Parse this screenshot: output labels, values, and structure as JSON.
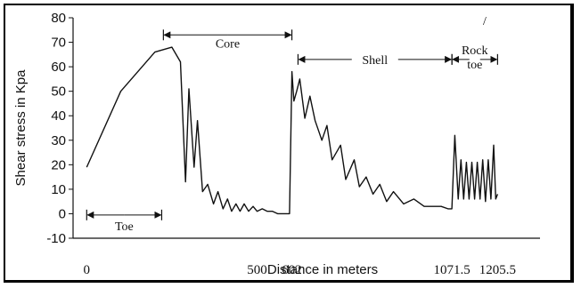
{
  "chart_data": {
    "type": "line",
    "title": "",
    "xlabel": "Distance in meters",
    "ylabel": "Shear stress in Kpa",
    "xlim": [
      -40,
      1330
    ],
    "ylim": [
      -10,
      80
    ],
    "y_ticks": [
      -10,
      0,
      10,
      20,
      30,
      40,
      50,
      60,
      70,
      80
    ],
    "x_ticks": [
      {
        "value": 0,
        "label": "0"
      },
      {
        "value": 500,
        "label": "500"
      },
      {
        "value": 602,
        "label": "602"
      },
      {
        "value": 1071.5,
        "label": "1071.5"
      },
      {
        "value": 1205.5,
        "label": "1205.5"
      }
    ],
    "grid": false,
    "legend": "none",
    "series": [
      {
        "x": [
          0,
          100,
          200,
          250,
          275,
          290,
          300,
          315,
          325,
          340,
          355,
          372,
          385,
          400,
          413,
          425,
          438,
          450,
          462,
          475,
          488,
          500,
          515,
          530,
          545,
          560,
          580,
          595,
          602,
          608,
          616,
          625,
          640,
          655,
          670,
          690,
          705,
          720,
          745,
          760,
          785,
          800,
          820,
          840,
          860,
          880,
          900,
          930,
          960,
          990,
          1020,
          1040,
          1060,
          1071.5,
          1080,
          1090,
          1098,
          1106,
          1114,
          1122,
          1130,
          1138,
          1146,
          1154,
          1162,
          1170,
          1178,
          1186,
          1194,
          1200,
          1205.5
        ],
        "y": [
          19,
          50,
          66,
          68,
          62,
          13,
          51,
          19,
          38,
          9,
          12,
          4,
          9,
          2,
          6,
          1,
          4,
          1,
          4,
          1,
          3,
          1,
          2,
          1,
          1,
          0,
          0,
          0,
          58,
          46,
          50,
          55,
          39,
          48,
          38,
          30,
          36,
          22,
          28,
          14,
          22,
          11,
          15,
          8,
          12,
          5,
          9,
          4,
          6,
          3,
          3,
          3,
          2,
          2,
          32,
          6,
          22,
          6,
          21,
          6,
          21,
          6,
          21,
          6,
          22,
          5,
          22,
          6,
          28,
          6,
          8
        ]
      }
    ],
    "zones": [
      {
        "label": "Toe",
        "x_start": 0,
        "x_end": 220,
        "y": -0.5
      },
      {
        "label": "Core",
        "x_start": 225,
        "x_end": 602,
        "y": 73
      },
      {
        "label": "Shell",
        "x_start": 620,
        "x_end": 1071.5,
        "y": 63
      },
      {
        "label_lines": [
          "Rock",
          "toe"
        ],
        "x_start": 1071.5,
        "x_end": 1205.5,
        "y": 63
      }
    ],
    "annotation_mark": "/"
  }
}
